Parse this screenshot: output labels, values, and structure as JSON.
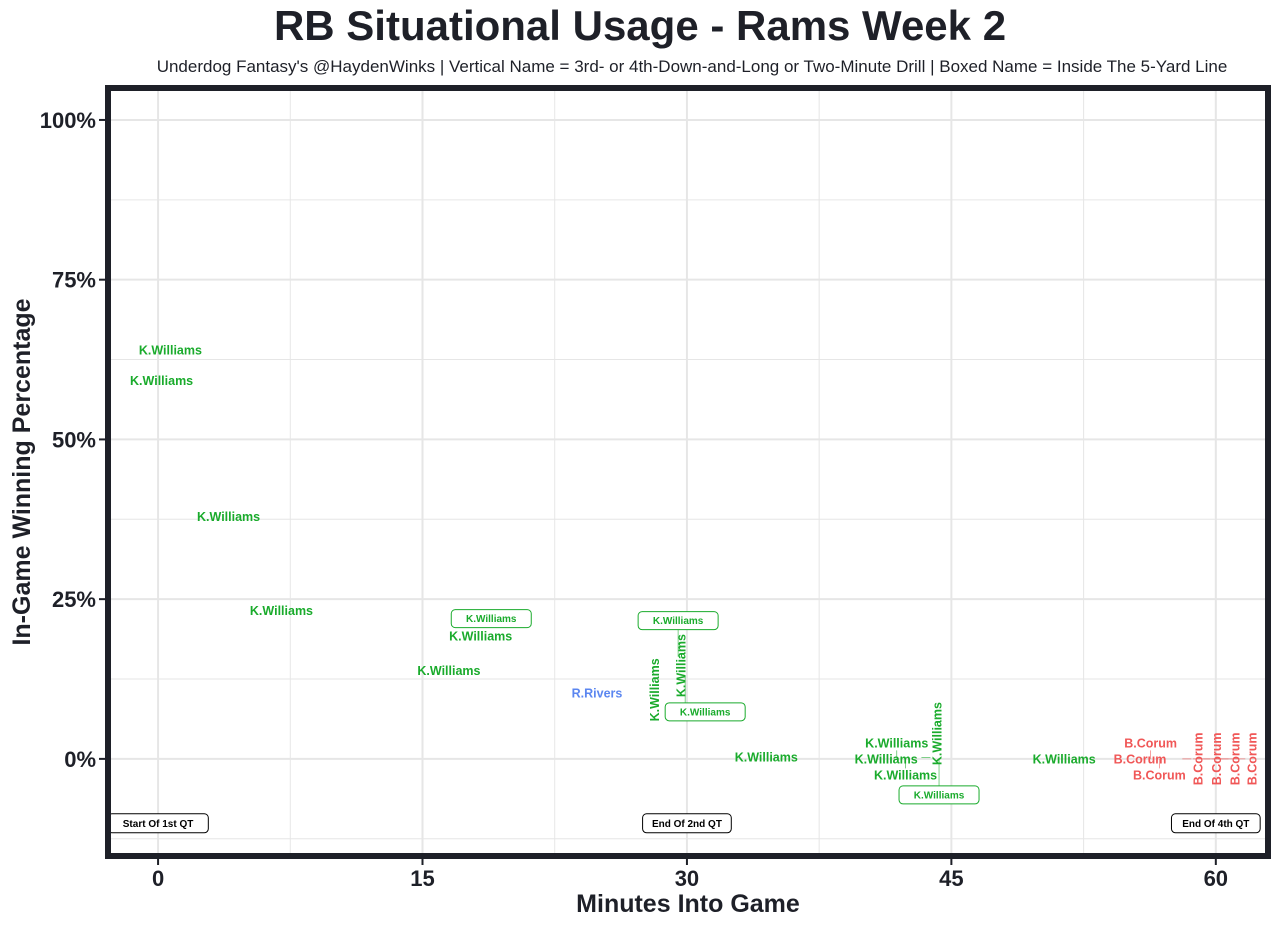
{
  "chart_data": {
    "type": "scatter",
    "title": "RB Situational Usage - Rams Week 2",
    "subtitle": "Underdog Fantasy's @HaydenWinks | Vertical Name = 3rd- or 4th-Down-and-Long or Two-Minute Drill | Boxed Name = Inside The 5-Yard Line",
    "xlabel": "Minutes Into Game",
    "ylabel": "In-Game Winning Percentage",
    "xlim": [
      -2.84,
      62.96
    ],
    "ylim": [
      -15.2,
      105
    ],
    "x_ticks": [
      0,
      15,
      30,
      45,
      60
    ],
    "x_tick_labels": [
      "0",
      "15",
      "30",
      "45",
      "60"
    ],
    "y_ticks": [
      0,
      25,
      50,
      75,
      100
    ],
    "y_tick_labels": [
      "0%",
      "25%",
      "50%",
      "75%",
      "100%"
    ],
    "grid": true,
    "colors": {
      "K.Williams": "#1aab2c",
      "R.Rivers": "#5b86f0",
      "B.Corum": "#f05757",
      "frame": "#1e2028"
    },
    "points": [
      {
        "label": "K.Williams",
        "x": 0.7,
        "y": 64.0,
        "style": "normal"
      },
      {
        "label": "K.Williams",
        "x": 0.2,
        "y": 59.2,
        "style": "normal"
      },
      {
        "label": "K.Williams",
        "x": 4.0,
        "y": 37.9,
        "style": "normal"
      },
      {
        "label": "K.Williams",
        "x": 7.0,
        "y": 23.2,
        "style": "normal"
      },
      {
        "label": "K.Williams",
        "x": 18.3,
        "y": 19.2,
        "style": "normal"
      },
      {
        "label": "K.Williams",
        "x": 18.9,
        "y": 20.7,
        "style": "boxed"
      },
      {
        "label": "K.Williams",
        "x": 16.5,
        "y": 13.8,
        "style": "normal"
      },
      {
        "label": "R.Rivers",
        "x": 24.9,
        "y": 10.3,
        "style": "normal"
      },
      {
        "label": "K.Williams",
        "x": 28.2,
        "y": 10.8,
        "style": "vertical"
      },
      {
        "label": "K.Williams",
        "x": 29.7,
        "y": 14.6,
        "style": "vertical"
      },
      {
        "label": "K.Williams",
        "x": 29.5,
        "y": 16.0,
        "style": "boxed"
      },
      {
        "label": "K.Williams",
        "x": 29.9,
        "y": 13.0,
        "style": "boxed"
      },
      {
        "label": "K.Williams",
        "x": 34.5,
        "y": 0.3,
        "style": "normal"
      },
      {
        "label": "K.Williams",
        "x": 41.3,
        "y": 0.0,
        "style": "normal"
      },
      {
        "label": "K.Williams",
        "x": 41.9,
        "y": 0.0,
        "style": "normal"
      },
      {
        "label": "K.Williams",
        "x": 42.4,
        "y": 0.0,
        "style": "normal"
      },
      {
        "label": "K.Williams",
        "x": 43.3,
        "y": 0.2,
        "style": "vertical"
      },
      {
        "label": "K.Williams",
        "x": 44.3,
        "y": 0.0,
        "style": "boxed"
      },
      {
        "label": "K.Williams",
        "x": 51.4,
        "y": 0.0,
        "style": "normal"
      },
      {
        "label": "B.Corum",
        "x": 55.7,
        "y": 0.0,
        "style": "normal"
      },
      {
        "label": "B.Corum",
        "x": 56.3,
        "y": 0.0,
        "style": "normal"
      },
      {
        "label": "B.Corum",
        "x": 56.8,
        "y": 0.0,
        "style": "normal"
      },
      {
        "label": "B.Corum",
        "x": 58.1,
        "y": 0.0,
        "style": "vertical"
      },
      {
        "label": "B.Corum",
        "x": 58.7,
        "y": 0.0,
        "style": "vertical"
      },
      {
        "label": "B.Corum",
        "x": 59.3,
        "y": 0.0,
        "style": "vertical"
      },
      {
        "label": "B.Corum",
        "x": 59.8,
        "y": 0.0,
        "style": "vertical"
      }
    ],
    "annotations": [
      {
        "label": "Start Of 1st QT",
        "x": 0,
        "y": -10
      },
      {
        "label": "End Of 2nd QT",
        "x": 30,
        "y": -10
      },
      {
        "label": "End Of 4th QT",
        "x": 60,
        "y": -10
      }
    ]
  }
}
